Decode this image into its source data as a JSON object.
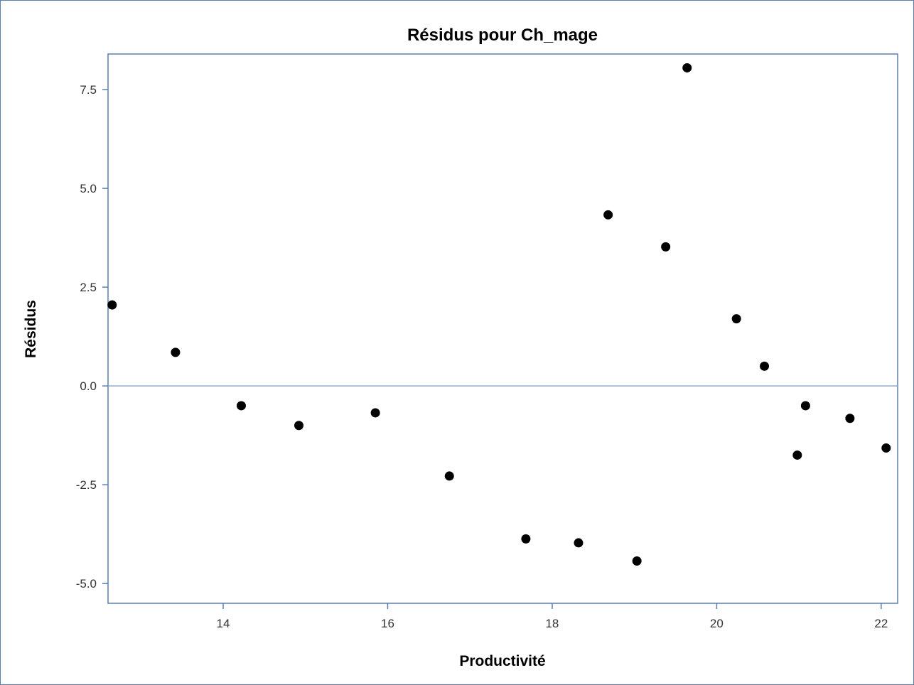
{
  "chart_data": {
    "type": "scatter",
    "title": "Résidus pour Ch_mage",
    "xlabel": "Productivité",
    "ylabel": "Résidus",
    "xlim": [
      12.6,
      22.2
    ],
    "ylim": [
      -5.5,
      8.4
    ],
    "x_ticks": [
      14,
      16,
      18,
      20,
      22
    ],
    "x_tick_labels": [
      "14",
      "16",
      "18",
      "20",
      "22"
    ],
    "y_ticks": [
      -5.0,
      -2.5,
      0.0,
      2.5,
      5.0,
      7.5
    ],
    "y_tick_labels": [
      "-5.0",
      "-2.5",
      "0.0",
      "2.5",
      "5.0",
      "7.5"
    ],
    "reference_line_y": 0.0,
    "grid": false,
    "legend": "none",
    "colors": {
      "marker": "#000000",
      "frame": "#5b7fae",
      "reference_line": "#8fa8c8",
      "axis": "#5b7fae"
    },
    "points": [
      {
        "x": 12.65,
        "y": 2.05
      },
      {
        "x": 13.42,
        "y": 0.85
      },
      {
        "x": 14.22,
        "y": -0.5
      },
      {
        "x": 14.92,
        "y": -1.0
      },
      {
        "x": 15.85,
        "y": -0.68
      },
      {
        "x": 16.75,
        "y": -2.28
      },
      {
        "x": 17.68,
        "y": -3.87
      },
      {
        "x": 18.32,
        "y": -3.97
      },
      {
        "x": 18.68,
        "y": 4.33
      },
      {
        "x": 19.03,
        "y": -4.43
      },
      {
        "x": 19.38,
        "y": 3.52
      },
      {
        "x": 19.64,
        "y": 8.05
      },
      {
        "x": 20.24,
        "y": 1.7
      },
      {
        "x": 20.58,
        "y": 0.5
      },
      {
        "x": 20.98,
        "y": -1.75
      },
      {
        "x": 21.08,
        "y": -0.5
      },
      {
        "x": 21.62,
        "y": -0.82
      },
      {
        "x": 22.06,
        "y": -1.57
      }
    ]
  }
}
